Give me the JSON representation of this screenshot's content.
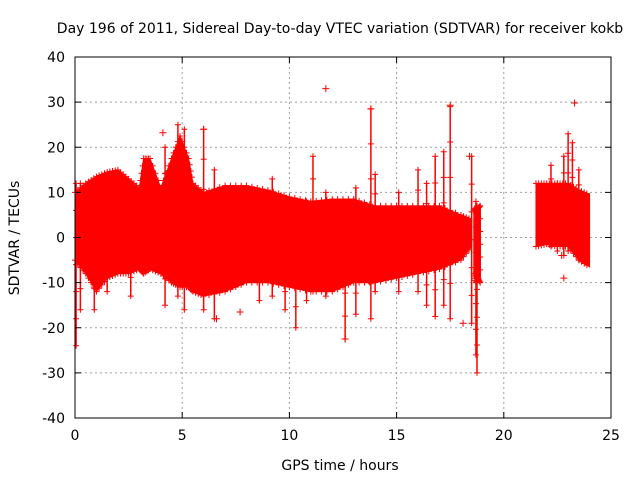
{
  "chart_data": {
    "type": "scatter",
    "title": "Day 196 of 2011, Sidereal Day-to-day VTEC variation (SDTVAR) for receiver kokb",
    "xlabel": "GPS time / hours",
    "ylabel": "SDTVAR / TECUs",
    "xlim": [
      0,
      25
    ],
    "ylim": [
      -40,
      40
    ],
    "xticks": [
      0,
      5,
      10,
      15,
      20,
      25
    ],
    "yticks": [
      -40,
      -30,
      -20,
      -10,
      0,
      10,
      20,
      30,
      40
    ],
    "grid": true,
    "marker": "+",
    "colors": {
      "series": "#ff0000",
      "grid": "#a0a0a0",
      "axis": "#000000"
    },
    "series": [
      {
        "name": "SDTVAR",
        "band_segments": [
          {
            "x": [
              0,
              0.5,
              1,
              1.5,
              2,
              2.5,
              3,
              3.2,
              3.5,
              4,
              4.5,
              4.9,
              5.3,
              5.5,
              6,
              7,
              8,
              9,
              10,
              11,
              12,
              13,
              14,
              15,
              16,
              17,
              18,
              18.5
            ],
            "upper": [
              10,
              12,
              13.5,
              14.5,
              15,
              13,
              11,
              17.5,
              17.5,
              11,
              17.5,
              22.5,
              17.5,
              12,
              10,
              11.5,
              11.5,
              10.5,
              9,
              8,
              8.5,
              8.5,
              7,
              7,
              7,
              7,
              5,
              4
            ],
            "lower": [
              -5,
              -8,
              -12,
              -9,
              -8,
              -8,
              -7,
              -8,
              -7,
              -8,
              -10,
              -11,
              -11,
              -12,
              -13,
              -12,
              -10,
              -10,
              -11,
              -12,
              -12,
              -10,
              -10,
              -9,
              -8,
              -7,
              -5,
              -2
            ]
          },
          {
            "x": [
              18.6,
              18.7,
              18.8,
              18.9
            ],
            "upper": [
              6,
              6.5,
              6.5,
              7
            ],
            "lower": [
              -8,
              -10,
              -9,
              -10
            ]
          },
          {
            "x": [
              21.5,
              22,
              22.5,
              23,
              23.5,
              24
            ],
            "upper": [
              12,
              12,
              12,
              12,
              10.5,
              9.5
            ],
            "lower": [
              -2,
              -1.5,
              -2,
              -2,
              -5,
              -6.5
            ]
          }
        ],
        "spikes": [
          {
            "x": 0.05,
            "y": [
              -24,
              12
            ]
          },
          {
            "x": 0.25,
            "y": [
              -16,
              12
            ]
          },
          {
            "x": 0.9,
            "y": [
              -16,
              12
            ]
          },
          {
            "x": 1.5,
            "y": [
              -12,
              12
            ]
          },
          {
            "x": 2.6,
            "y": [
              -13,
              12
            ]
          },
          {
            "x": 4.2,
            "y": [
              -15,
              20
            ]
          },
          {
            "x": 4.8,
            "y": [
              -13,
              25
            ]
          },
          {
            "x": 5.1,
            "y": [
              -16,
              24
            ]
          },
          {
            "x": 6.0,
            "y": [
              -16,
              24
            ]
          },
          {
            "x": 6.5,
            "y": [
              -18,
              15
            ]
          },
          {
            "x": 8.6,
            "y": [
              -14,
              10
            ]
          },
          {
            "x": 9.2,
            "y": [
              -13,
              13
            ]
          },
          {
            "x": 9.8,
            "y": [
              -16,
              8
            ]
          },
          {
            "x": 10.3,
            "y": [
              -20,
              8
            ]
          },
          {
            "x": 10.8,
            "y": [
              -14,
              8
            ]
          },
          {
            "x": 11.1,
            "y": [
              -12,
              18
            ]
          },
          {
            "x": 11.7,
            "y": [
              -13,
              10
            ]
          },
          {
            "x": 12.6,
            "y": [
              -22.5,
              8
            ]
          },
          {
            "x": 13.1,
            "y": [
              -17,
              11
            ]
          },
          {
            "x": 13.8,
            "y": [
              -18,
              28.5
            ]
          },
          {
            "x": 14.0,
            "y": [
              -12,
              14
            ]
          },
          {
            "x": 15.1,
            "y": [
              -12,
              10
            ]
          },
          {
            "x": 16.0,
            "y": [
              -12,
              15
            ]
          },
          {
            "x": 16.4,
            "y": [
              -15,
              12
            ]
          },
          {
            "x": 16.8,
            "y": [
              -17.5,
              18
            ]
          },
          {
            "x": 17.2,
            "y": [
              -15,
              19
            ]
          },
          {
            "x": 17.5,
            "y": [
              -18,
              29
            ]
          },
          {
            "x": 18.5,
            "y": [
              -19,
              18
            ]
          },
          {
            "x": 18.7,
            "y": [
              -26,
              8
            ]
          },
          {
            "x": 18.75,
            "y": [
              -30,
              7
            ]
          },
          {
            "x": 18.9,
            "y": [
              -10,
              7
            ]
          },
          {
            "x": 22.2,
            "y": [
              -2,
              16
            ]
          },
          {
            "x": 22.5,
            "y": [
              -3,
              12
            ]
          },
          {
            "x": 22.8,
            "y": [
              -4,
              18
            ]
          },
          {
            "x": 23.0,
            "y": [
              -3,
              23
            ]
          },
          {
            "x": 23.2,
            "y": [
              -2,
              21
            ]
          },
          {
            "x": 23.5,
            "y": [
              -5,
              15
            ]
          }
        ],
        "outliers": [
          {
            "x": 11.7,
            "y": 33
          },
          {
            "x": 23.3,
            "y": 29.8
          },
          {
            "x": 17.5,
            "y": 29.3
          },
          {
            "x": 13.8,
            "y": 28.5
          },
          {
            "x": 6.0,
            "y": 24
          },
          {
            "x": 4.1,
            "y": 23.2
          },
          {
            "x": 18.4,
            "y": 18
          },
          {
            "x": 7.7,
            "y": -16.5
          },
          {
            "x": 6.6,
            "y": -18
          },
          {
            "x": 18.1,
            "y": -19
          },
          {
            "x": 12.6,
            "y": -22.5
          },
          {
            "x": 22.8,
            "y": -9
          },
          {
            "x": 22.7,
            "y": -4
          }
        ]
      }
    ]
  }
}
